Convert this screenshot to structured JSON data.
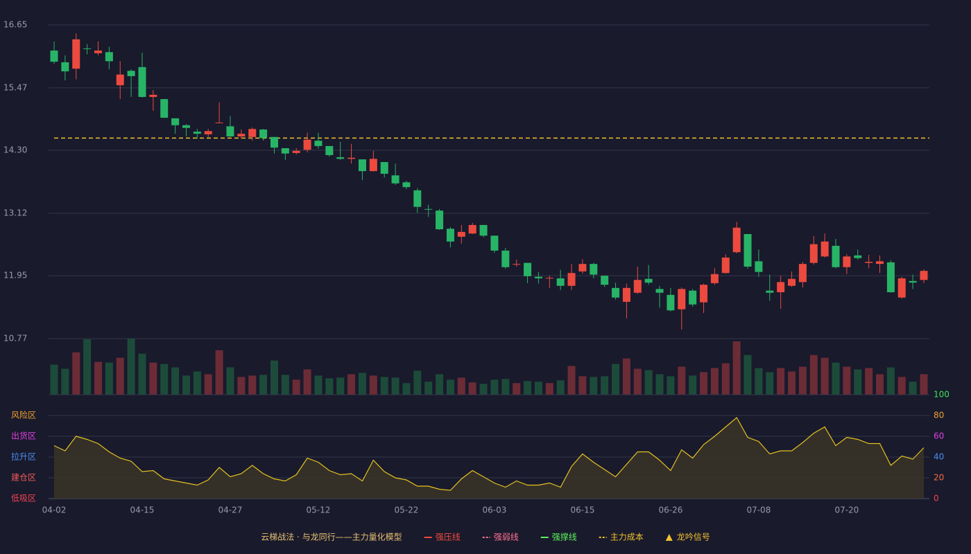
{
  "chart_data": {
    "type": "candlestick",
    "categories": [
      "04-02",
      null,
      null,
      null,
      null,
      null,
      null,
      null,
      "04-15",
      null,
      null,
      null,
      null,
      null,
      null,
      null,
      "04-27",
      null,
      null,
      null,
      null,
      null,
      null,
      null,
      "05-12",
      null,
      null,
      null,
      null,
      null,
      null,
      null,
      "05-22",
      null,
      null,
      null,
      null,
      null,
      null,
      null,
      "06-03",
      null,
      null,
      null,
      null,
      null,
      null,
      null,
      "06-15",
      null,
      null,
      null,
      null,
      null,
      null,
      null,
      "06-26",
      null,
      null,
      null,
      null,
      null,
      null,
      null,
      "07-08",
      null,
      null,
      null,
      null,
      null,
      null,
      null,
      "07-20",
      null,
      null,
      null,
      null,
      null,
      null,
      null
    ],
    "open": [
      16.17,
      15.95,
      15.83,
      16.21,
      16.12,
      16.14,
      15.52,
      15.79,
      15.86,
      15.3,
      15.26,
      14.9,
      14.77,
      14.65,
      14.6,
      14.81,
      14.75,
      14.56,
      14.55,
      14.69,
      14.55,
      14.34,
      14.25,
      14.31,
      14.48,
      14.38,
      14.17,
      14.14,
      14.13,
      13.91,
      14.08,
      13.83,
      13.7,
      13.55,
      13.2,
      13.17,
      12.83,
      12.68,
      12.74,
      12.9,
      12.7,
      12.42,
      12.16,
      12.19,
      11.93,
      11.9,
      11.9,
      11.76,
      12.03,
      12.17,
      11.95,
      11.72,
      11.46,
      11.63,
      11.89,
      11.7,
      11.59,
      11.32,
      11.67,
      11.45,
      11.81,
      12.0,
      12.39,
      12.73,
      12.22,
      11.67,
      11.64,
      11.76,
      11.83,
      12.19,
      12.31,
      12.51,
      12.11,
      12.33,
      12.19,
      12.17,
      12.2,
      11.54,
      11.85,
      11.87
    ],
    "high": [
      16.34,
      16.08,
      16.49,
      16.29,
      16.34,
      16.24,
      15.97,
      15.82,
      16.13,
      15.43,
      15.26,
      14.9,
      14.79,
      14.7,
      14.7,
      15.2,
      14.94,
      14.69,
      14.73,
      14.7,
      14.55,
      14.34,
      14.34,
      14.63,
      14.63,
      14.38,
      14.46,
      14.42,
      14.13,
      14.29,
      14.08,
      14.05,
      13.73,
      13.59,
      13.28,
      13.2,
      12.86,
      12.9,
      12.94,
      12.9,
      12.7,
      12.47,
      12.25,
      12.19,
      12.02,
      11.95,
      12.06,
      12.17,
      12.26,
      12.19,
      11.95,
      11.82,
      11.8,
      12.12,
      12.15,
      11.76,
      11.72,
      11.73,
      11.7,
      11.8,
      12.09,
      12.35,
      12.96,
      12.73,
      12.44,
      11.97,
      11.95,
      12.03,
      12.21,
      12.69,
      12.74,
      12.64,
      12.35,
      12.44,
      12.34,
      12.33,
      12.24,
      11.93,
      11.97,
      12.07
    ],
    "low": [
      15.92,
      15.61,
      15.63,
      16.1,
      16.08,
      15.82,
      15.26,
      15.3,
      15.29,
      15.04,
      14.91,
      14.61,
      14.56,
      14.52,
      14.55,
      14.81,
      14.55,
      14.52,
      14.48,
      14.48,
      14.24,
      14.12,
      14.22,
      14.26,
      14.33,
      14.18,
      14.12,
      14.05,
      13.74,
      13.9,
      13.79,
      13.65,
      13.57,
      13.13,
      13.05,
      12.81,
      12.48,
      12.55,
      12.73,
      12.67,
      12.38,
      12.08,
      12.12,
      11.81,
      11.8,
      11.72,
      11.68,
      11.68,
      11.99,
      11.9,
      11.74,
      11.5,
      11.15,
      11.61,
      11.78,
      11.35,
      11.28,
      10.94,
      11.37,
      11.25,
      11.78,
      11.99,
      12.37,
      12.08,
      11.93,
      11.48,
      11.33,
      11.74,
      11.73,
      12.16,
      12.29,
      12.09,
      11.98,
      12.25,
      12.09,
      12.0,
      11.63,
      11.52,
      11.7,
      11.81
    ],
    "close": [
      15.96,
      15.78,
      16.38,
      16.2,
      16.17,
      15.97,
      15.72,
      15.69,
      15.3,
      15.34,
      14.91,
      14.77,
      14.72,
      14.61,
      14.66,
      14.82,
      14.56,
      14.61,
      14.7,
      14.53,
      14.35,
      14.24,
      14.29,
      14.5,
      14.38,
      14.21,
      14.14,
      14.16,
      13.91,
      14.14,
      13.86,
      13.68,
      13.61,
      13.24,
      13.19,
      12.82,
      12.59,
      12.77,
      12.9,
      12.7,
      12.42,
      12.11,
      12.17,
      11.94,
      11.9,
      11.91,
      11.76,
      12.0,
      12.17,
      11.97,
      11.78,
      11.54,
      11.72,
      11.87,
      11.82,
      11.63,
      11.3,
      11.7,
      11.41,
      11.78,
      11.98,
      12.29,
      12.85,
      12.12,
      12.02,
      11.63,
      11.83,
      11.89,
      12.17,
      12.54,
      12.59,
      12.11,
      12.31,
      12.28,
      12.21,
      12.22,
      11.64,
      11.9,
      11.82,
      12.04
    ],
    "up_color": "#ec4a3f",
    "down_color": "#28b467",
    "ylim": [
      10.77,
      16.65
    ],
    "yticks": [
      16.65,
      15.47,
      {
        "value": 14.3,
        "label": "14.30"
      },
      13.12,
      11.95,
      10.77
    ],
    "grid": true,
    "cost_line": {
      "name": "主力成本",
      "value": 14.53,
      "color": "#f2c12e"
    },
    "volume": {
      "values": [
        44,
        38,
        62,
        81,
        48,
        47,
        54,
        82,
        60,
        47,
        45,
        40,
        28,
        34,
        30,
        65,
        40,
        26,
        28,
        29,
        50,
        29,
        22,
        37,
        28,
        24,
        25,
        30,
        32,
        28,
        26,
        25,
        17,
        35,
        19,
        30,
        22,
        25,
        18,
        16,
        22,
        23,
        17,
        20,
        19,
        17,
        21,
        42,
        27,
        26,
        27,
        45,
        53,
        38,
        36,
        30,
        27,
        41,
        28,
        33,
        39,
        46,
        78,
        58,
        39,
        33,
        39,
        34,
        41,
        58,
        54,
        47,
        41,
        37,
        39,
        30,
        40,
        26,
        19,
        30
      ],
      "up_color": "#6b2c36",
      "down_color": "#1d4b3a"
    },
    "indicator": {
      "values": [
        51,
        46,
        60,
        57,
        53,
        45,
        39,
        36,
        26,
        27,
        19,
        17,
        15,
        13,
        18,
        30,
        21,
        24,
        32,
        24,
        19,
        17,
        23,
        39,
        35,
        27,
        23,
        24,
        17,
        37,
        26,
        20,
        18,
        12,
        12,
        9,
        8,
        19,
        27,
        21,
        15,
        11,
        17,
        13,
        13,
        15,
        11,
        31,
        43,
        35,
        28,
        21,
        33,
        45,
        45,
        37,
        27,
        47,
        39,
        52,
        60,
        69,
        78,
        59,
        55,
        43,
        46,
        46,
        54,
        63,
        69,
        51,
        59,
        57,
        53,
        53,
        32,
        41,
        38,
        49
      ],
      "color": "#e6c21f",
      "ylim": [
        0,
        100
      ],
      "yticks": [
        0,
        20,
        40,
        60,
        80,
        100
      ],
      "ytick_colors": [
        "#f04452",
        "#f06a40",
        "#4a8ff0",
        "#e040e0",
        "#f0a030",
        "#3fe05a"
      ],
      "zones": [
        {
          "label": "低吸区",
          "value": 0,
          "color": "#f04452"
        },
        {
          "label": "建仓区",
          "value": 20,
          "color": "#f05a5a"
        },
        {
          "label": "拉升区",
          "value": 40,
          "color": "#4a8ff0"
        },
        {
          "label": "出货区",
          "value": 60,
          "color": "#e040e0"
        },
        {
          "label": "风险区",
          "value": 80,
          "color": "#f0a030"
        }
      ]
    },
    "legend": {
      "title": "云梯战法 · 与龙同行——主力量化模型",
      "title_color": "#e8c070",
      "items": [
        {
          "name": "强压线",
          "color": "#f04a3f",
          "style": "solid"
        },
        {
          "name": "强弱线",
          "color": "#ff7090",
          "style": "dashed"
        },
        {
          "name": "强撑线",
          "color": "#5cf05c",
          "style": "solid"
        },
        {
          "name": "主力成本",
          "color": "#f2c12e",
          "style": "dashed"
        },
        {
          "name": "龙吟信号",
          "color": "#f2c12e",
          "style": "triangle"
        }
      ]
    }
  }
}
